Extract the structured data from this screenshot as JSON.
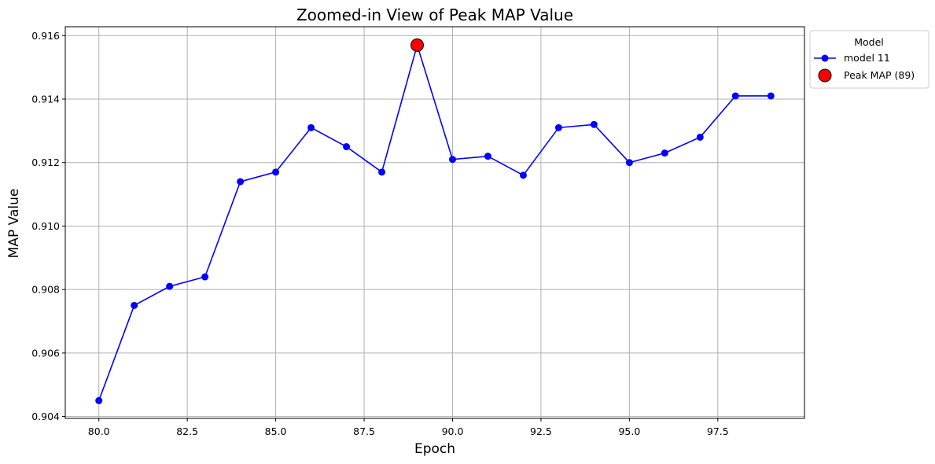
{
  "chart_data": {
    "type": "line",
    "title": "Zoomed-in View of Peak MAP Value",
    "xlabel": "Epoch",
    "ylabel": "MAP Value",
    "xlim": [
      79.05,
      99.95
    ],
    "ylim": [
      0.90394,
      0.91628
    ],
    "xticks": [
      80.0,
      82.5,
      85.0,
      87.5,
      90.0,
      92.5,
      95.0,
      97.5
    ],
    "xtick_labels": [
      "80.0",
      "82.5",
      "85.0",
      "87.5",
      "90.0",
      "92.5",
      "95.0",
      "97.5"
    ],
    "yticks": [
      0.904,
      0.906,
      0.908,
      0.91,
      0.912,
      0.914,
      0.916
    ],
    "ytick_labels": [
      "0.904",
      "0.906",
      "0.908",
      "0.910",
      "0.912",
      "0.914",
      "0.916"
    ],
    "grid": true,
    "legend": {
      "title": "Model",
      "placement": "outside-top-right",
      "entries": [
        "model 11",
        "Peak MAP (89)"
      ]
    },
    "series": [
      {
        "name": "model 11",
        "color": "#0000ff",
        "marker": "circle",
        "x": [
          80,
          81,
          82,
          83,
          84,
          85,
          86,
          87,
          88,
          89,
          90,
          91,
          92,
          93,
          94,
          95,
          96,
          97,
          98,
          99
        ],
        "y": [
          0.9045,
          0.9075,
          0.9081,
          0.9084,
          0.9114,
          0.9117,
          0.9131,
          0.9125,
          0.9117,
          0.9157,
          0.9121,
          0.9122,
          0.9116,
          0.9131,
          0.9132,
          0.912,
          0.9123,
          0.9128,
          0.9141,
          0.9141
        ]
      }
    ],
    "highlight": {
      "name": "Peak MAP (89)",
      "x": 89,
      "y": 0.9157,
      "color": "#ff0000",
      "edge_color": "#000000"
    }
  }
}
